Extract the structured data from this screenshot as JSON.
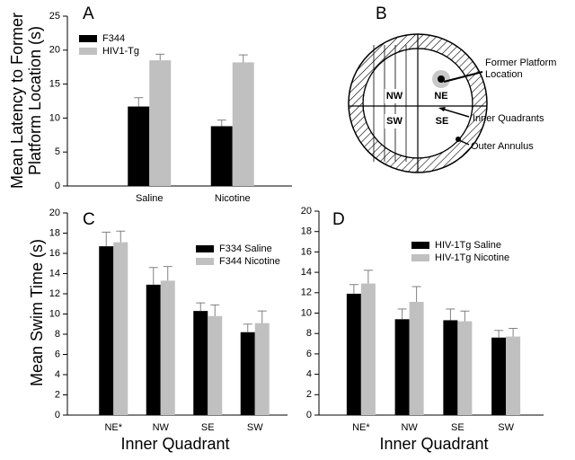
{
  "chart_data": [
    {
      "type": "bar",
      "panel": "A",
      "ylabel": [
        "Mean Latency to Former",
        "Platform Location (s)"
      ],
      "categories": [
        "Saline",
        "Nicotine"
      ],
      "series": [
        {
          "name": "F344",
          "color": "#000000",
          "values": [
            11.7,
            8.8
          ],
          "errors": [
            1.3,
            0.9
          ]
        },
        {
          "name": "HIV1-Tg",
          "color": "#c0c0c0",
          "values": [
            18.5,
            18.2
          ],
          "errors": [
            0.9,
            1.1
          ]
        }
      ],
      "ylim": [
        0,
        25
      ],
      "yticks": [
        0,
        5,
        10,
        15,
        20,
        25
      ]
    },
    {
      "type": "bar",
      "panel": "C",
      "ylabel": "Mean Swim Time (s)",
      "xlabel": "Inner Quadrant",
      "categories": [
        "NE*",
        "NW",
        "SE",
        "SW"
      ],
      "series": [
        {
          "name": "F334 Saline",
          "color": "#000000",
          "values": [
            16.7,
            12.9,
            10.3,
            8.2
          ],
          "errors": [
            1.4,
            1.7,
            0.8,
            0.8
          ]
        },
        {
          "name": "F344 Nicotine",
          "color": "#c0c0c0",
          "values": [
            17.1,
            13.3,
            9.8,
            9.1
          ],
          "errors": [
            1.1,
            1.4,
            1.1,
            1.2
          ]
        }
      ],
      "ylim": [
        0,
        20
      ],
      "yticks": [
        0,
        2,
        4,
        6,
        8,
        10,
        12,
        14,
        16,
        18,
        20
      ]
    },
    {
      "type": "bar",
      "panel": "D",
      "xlabel": "Inner Quadrant",
      "categories": [
        "NE*",
        "NW",
        "SE",
        "SW"
      ],
      "series": [
        {
          "name": "HIV-1Tg Saline",
          "color": "#000000",
          "values": [
            11.9,
            9.4,
            9.3,
            7.6
          ],
          "errors": [
            0.9,
            1.0,
            1.1,
            0.7
          ]
        },
        {
          "name": "HIV-1Tg Nicotine",
          "color": "#c0c0c0",
          "values": [
            12.9,
            11.1,
            9.2,
            7.7
          ],
          "errors": [
            1.3,
            1.5,
            1.0,
            0.8
          ]
        }
      ],
      "ylim": [
        0,
        20
      ],
      "yticks": [
        0,
        2,
        4,
        6,
        8,
        10,
        12,
        14,
        16,
        18,
        20
      ]
    }
  ],
  "diagram": {
    "panel": "B",
    "quadrants": [
      "NW",
      "NE",
      "SW",
      "SE"
    ],
    "platform": [
      "Former Platform",
      "Location"
    ],
    "inner": "Inner Quadrants",
    "outer": "Outer Annulus"
  }
}
